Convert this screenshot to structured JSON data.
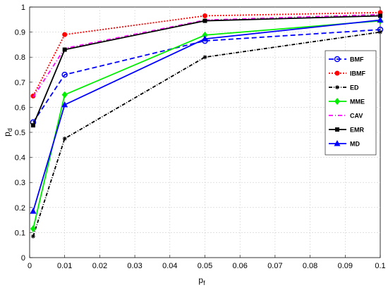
{
  "chart_data": {
    "type": "line",
    "title": "",
    "xlabel": "p",
    "xlabel_sub": "f",
    "ylabel": "p",
    "ylabel_sub": "d",
    "xlim": [
      0,
      0.1
    ],
    "ylim": [
      0,
      1
    ],
    "xticks": [
      "0",
      "0.01",
      "0.02",
      "0.03",
      "0.04",
      "0.05",
      "0.06",
      "0.07",
      "0.08",
      "0.09",
      "0.1"
    ],
    "yticks": [
      "0",
      "0.1",
      "0.2",
      "0.3",
      "0.4",
      "0.5",
      "0.6",
      "0.7",
      "0.8",
      "0.9",
      "1"
    ],
    "grid": true,
    "legend_position": "right",
    "x": [
      0.001,
      0.01,
      0.05,
      0.1
    ],
    "series": [
      {
        "name": "BMF",
        "values": [
          0.54,
          0.73,
          0.865,
          0.91
        ],
        "color": "#0000ff",
        "dash": "7,4",
        "marker": "circle-open"
      },
      {
        "name": "IBMF",
        "values": [
          0.645,
          0.89,
          0.965,
          0.978
        ],
        "color": "#ff0000",
        "dash": "2,2",
        "marker": "circle-filled"
      },
      {
        "name": "ED",
        "values": [
          0.085,
          0.475,
          0.8,
          0.9
        ],
        "color": "#000000",
        "dash": "5,2,1,2",
        "marker": "star"
      },
      {
        "name": "MME",
        "values": [
          0.115,
          0.65,
          0.888,
          0.945
        ],
        "color": "#00ee00",
        "dash": "",
        "marker": "diamond"
      },
      {
        "name": "CAV",
        "values": [
          0.64,
          0.835,
          0.948,
          0.97
        ],
        "color": "#ff00ff",
        "dash": "6,3,1,3",
        "marker": "none"
      },
      {
        "name": "EMR",
        "values": [
          0.528,
          0.83,
          0.945,
          0.965
        ],
        "color": "#000000",
        "dash": "",
        "marker": "square"
      },
      {
        "name": "MD",
        "values": [
          0.185,
          0.61,
          0.873,
          0.948
        ],
        "color": "#0000ff",
        "dash": "",
        "marker": "triangle"
      }
    ]
  }
}
